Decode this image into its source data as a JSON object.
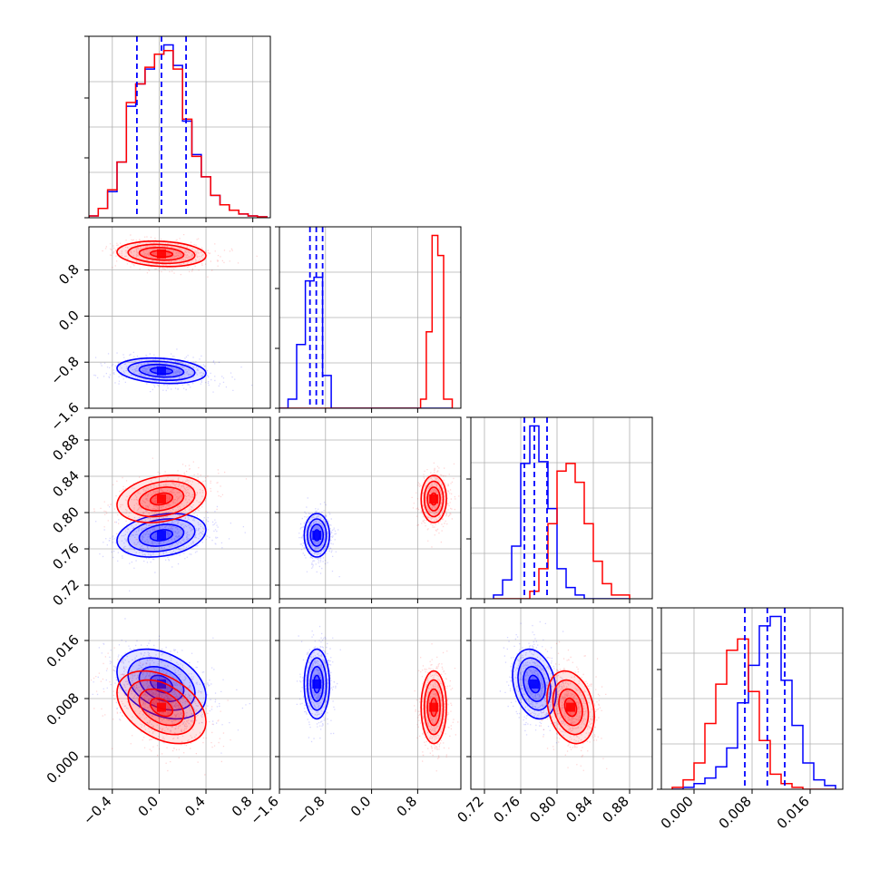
{
  "colors": {
    "series_a": "#0000ff",
    "series_b": "#ff0000",
    "grid": "#b0b0b0"
  },
  "chart_data": {
    "type": "corner",
    "grid": true,
    "legend": "none",
    "parameters": [
      {
        "range": [
          -0.6,
          0.95
        ],
        "ticks": [
          -0.4,
          0.0,
          0.4,
          0.8
        ],
        "tick_labels": [
          "−0.4",
          "0.0",
          "0.4",
          "0.8"
        ]
      },
      {
        "range": [
          -1.6,
          1.55
        ],
        "ticks": [
          -1.6,
          -0.8,
          0.0,
          0.8
        ],
        "tick_labels": [
          "−1.6",
          "−0.8",
          "0.0",
          "0.8"
        ]
      },
      {
        "range": [
          0.705,
          0.905
        ],
        "ticks": [
          0.72,
          0.76,
          0.8,
          0.84,
          0.88
        ],
        "tick_labels": [
          "0.72",
          "0.76",
          "0.80",
          "0.84",
          "0.88"
        ]
      },
      {
        "range": [
          -0.0045,
          0.0205
        ],
        "ticks": [
          0.0,
          0.008,
          0.016
        ],
        "tick_labels": [
          "0.000",
          "0.008",
          "0.016"
        ]
      }
    ],
    "series": [
      {
        "color": "#0000ff",
        "means": [
          0.02,
          -0.95,
          0.775,
          0.01
        ],
        "sds": [
          0.19,
          0.11,
          0.012,
          0.0024
        ],
        "quantiles": [
          [
            -0.19,
            0.02,
            0.23
          ],
          [
            -1.07,
            -0.96,
            -0.85
          ],
          [
            0.764,
            0.775,
            0.789
          ],
          [
            0.007,
            0.0101,
            0.0125
          ]
        ]
      },
      {
        "color": "#ff0000",
        "means": [
          0.02,
          1.08,
          0.815,
          0.0068
        ],
        "sds": [
          0.19,
          0.11,
          0.013,
          0.0025
        ],
        "quantiles": []
      }
    ],
    "correlations": [
      {
        "pair": [
          1,
          0
        ],
        "blue": -0.2,
        "red": -0.15
      },
      {
        "pair": [
          2,
          0
        ],
        "blue": 0.25,
        "red": 0.25
      },
      {
        "pair": [
          2,
          1
        ],
        "blue": 0.0,
        "red": 0.0
      },
      {
        "pair": [
          3,
          0
        ],
        "blue": -0.35,
        "red": -0.4
      },
      {
        "pair": [
          3,
          1
        ],
        "blue": 0.0,
        "red": 0.0
      },
      {
        "pair": [
          3,
          2
        ],
        "blue": -0.25,
        "red": -0.25
      }
    ],
    "histograms": [
      {
        "param": 0,
        "bins": [
          -0.6,
          -0.52,
          -0.44,
          -0.36,
          -0.28,
          -0.2,
          -0.12,
          -0.04,
          0.04,
          0.12,
          0.2,
          0.28,
          0.36,
          0.44,
          0.52,
          0.6,
          0.68,
          0.76,
          0.84,
          0.92
        ],
        "blue": [
          1,
          5,
          14,
          30,
          60,
          72,
          80,
          88,
          93,
          82,
          52,
          34,
          22,
          12,
          7,
          4,
          2,
          1,
          0.5
        ],
        "red": [
          1,
          5,
          15,
          30,
          62,
          72,
          81,
          88,
          90,
          80,
          53,
          33,
          22,
          12,
          7,
          4,
          2,
          1,
          0.5
        ]
      },
      {
        "param": 1,
        "bins": [
          -1.6,
          -1.45,
          -1.3,
          -1.15,
          -1.0,
          -0.85,
          -0.7,
          0.7,
          0.85,
          0.95,
          1.05,
          1.15,
          1.25,
          1.4
        ],
        "blue": [
          0,
          5,
          35,
          70,
          72,
          18,
          0,
          0,
          0,
          0,
          0,
          0,
          0
        ],
        "red": [
          0,
          0,
          0,
          0,
          0,
          0,
          0,
          0,
          5,
          42,
          95,
          84,
          5
        ]
      },
      {
        "param": 2,
        "bins": [
          0.73,
          0.74,
          0.75,
          0.76,
          0.77,
          0.78,
          0.79,
          0.8,
          0.81,
          0.82,
          0.83,
          0.84,
          0.85,
          0.86,
          0.87,
          0.88
        ],
        "blue": [
          2,
          10,
          28,
          72,
          92,
          73,
          48,
          16,
          6,
          2,
          0,
          0,
          0,
          0,
          0
        ],
        "red": [
          0,
          0,
          0,
          0,
          4,
          16,
          40,
          68,
          72,
          62,
          40,
          20,
          8,
          2,
          2
        ]
      },
      {
        "param": 3,
        "bins": [
          -0.003,
          -0.0015,
          0.0,
          0.0015,
          0.003,
          0.0045,
          0.006,
          0.0075,
          0.009,
          0.0105,
          0.012,
          0.0135,
          0.015,
          0.0165,
          0.018,
          0.0195
        ],
        "blue": [
          0,
          1,
          3,
          6,
          12,
          22,
          46,
          66,
          87,
          92,
          58,
          34,
          14,
          5,
          2
        ],
        "red": [
          1,
          5,
          14,
          35,
          56,
          74,
          80,
          52,
          26,
          8,
          3,
          1,
          0,
          0,
          0
        ]
      }
    ]
  }
}
